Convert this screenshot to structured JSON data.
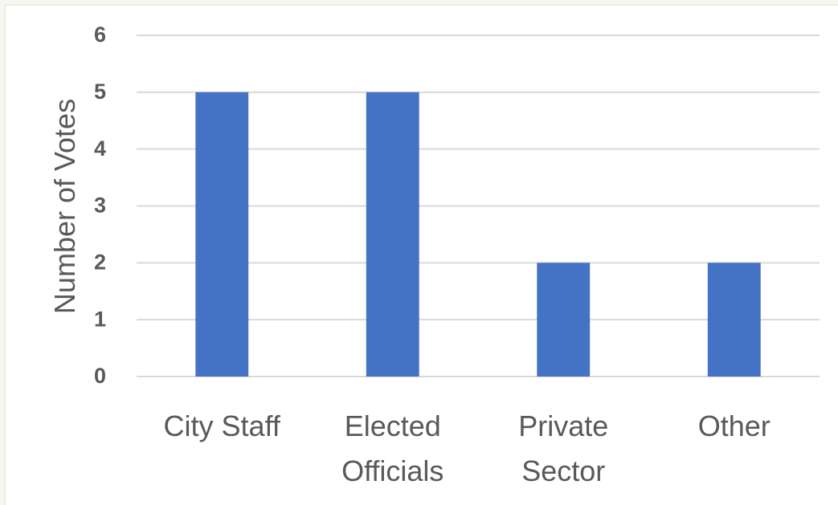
{
  "chart_data": {
    "type": "bar",
    "categories": [
      [
        "City Staff"
      ],
      [
        "Elected",
        "Officials"
      ],
      [
        "Private",
        "Sector"
      ],
      [
        "Other"
      ]
    ],
    "values": [
      5,
      5,
      2,
      2
    ],
    "title": "",
    "xlabel": "",
    "ylabel": "Number of Votes",
    "ylim": [
      0,
      6
    ],
    "yticks": [
      0,
      1,
      2,
      3,
      4,
      5,
      6
    ],
    "grid": true,
    "legend": "none",
    "bar_color": "#4472c4"
  }
}
